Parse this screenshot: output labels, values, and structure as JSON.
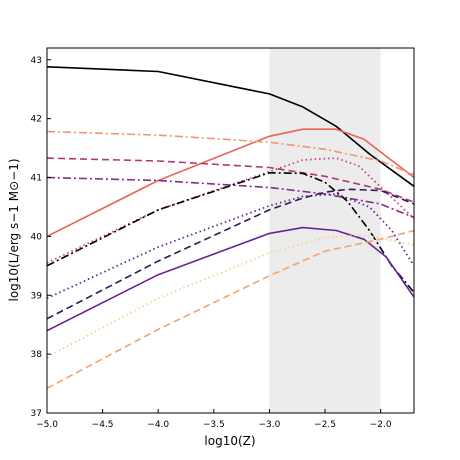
{
  "chart_data": {
    "type": "line",
    "title": "",
    "xlabel": "log10(Z)",
    "ylabel": "log10(L/erg s−1 M⊙−1)",
    "xlim": [
      -5.0,
      -1.7
    ],
    "ylim": [
      37,
      43.2
    ],
    "x_ticks": [
      -5.0,
      -4.5,
      -4.0,
      -3.5,
      -3.0,
      -2.5,
      -2.0
    ],
    "x_tick_labels": [
      "−5.0",
      "−4.5",
      "−4.0",
      "−3.5",
      "−3.0",
      "−2.5",
      "−2.0"
    ],
    "y_ticks": [
      37,
      38,
      39,
      40,
      41,
      42,
      43
    ],
    "y_tick_labels": [
      "37",
      "38",
      "39",
      "40",
      "41",
      "42",
      "43"
    ],
    "shaded_region": {
      "x": [
        -3.0,
        -2.0
      ],
      "color": "#ececec"
    },
    "grid": false,
    "legend": "none",
    "series": [
      {
        "style": "solid",
        "color": "#000000",
        "x": [
          -5.0,
          -4.0,
          -3.0,
          -2.7,
          -2.4,
          -2.1,
          -1.7
        ],
        "y": [
          42.88,
          42.8,
          42.42,
          42.2,
          41.87,
          41.4,
          40.85
        ]
      },
      {
        "style": "solid",
        "color": "#e8645a",
        "x": [
          -5.0,
          -4.0,
          -3.0,
          -2.7,
          -2.4,
          -2.15,
          -1.7
        ],
        "y": [
          40.0,
          40.95,
          41.7,
          41.82,
          41.82,
          41.65,
          41.0
        ]
      },
      {
        "style": "dashdot",
        "color": "#f4956a",
        "x": [
          -5.0,
          -4.0,
          -3.0,
          -2.5,
          -2.0,
          -1.7
        ],
        "y": [
          41.78,
          41.72,
          41.6,
          41.48,
          41.28,
          41.05
        ]
      },
      {
        "style": "dashed",
        "color": "#b5367a",
        "x": [
          -5.0,
          -4.0,
          -3.0,
          -2.5,
          -2.0,
          -1.7
        ],
        "y": [
          41.33,
          41.28,
          41.17,
          41.02,
          40.8,
          40.58
        ]
      },
      {
        "style": "dotted",
        "color": "#c2427a",
        "x": [
          -5.0,
          -4.0,
          -3.0,
          -2.7,
          -2.4,
          -2.2,
          -1.95,
          -1.7
        ],
        "y": [
          39.55,
          40.45,
          41.1,
          41.3,
          41.33,
          41.2,
          40.75,
          40.3
        ]
      },
      {
        "style": "dashdot",
        "color": "#842e83",
        "x": [
          -5.0,
          -4.0,
          -3.0,
          -2.5,
          -2.0,
          -1.7
        ],
        "y": [
          41.0,
          40.95,
          40.83,
          40.72,
          40.55,
          40.32
        ]
      },
      {
        "style": "dashdot",
        "color": "#000000",
        "x": [
          -5.0,
          -4.0,
          -3.0,
          -2.7,
          -2.5,
          -2.3,
          -2.1,
          -1.9,
          -1.7
        ],
        "y": [
          39.5,
          40.45,
          41.08,
          41.07,
          40.92,
          40.6,
          40.1,
          39.5,
          39.05
        ]
      },
      {
        "style": "dotted",
        "color": "#6a2396",
        "x": [
          -5.0,
          -4.0,
          -3.0,
          -2.7,
          -2.4,
          -2.1,
          -1.9,
          -1.7
        ],
        "y": [
          38.95,
          39.82,
          40.52,
          40.68,
          40.72,
          40.5,
          40.1,
          39.5
        ]
      },
      {
        "style": "dashed",
        "color": "#2c1b53",
        "x": [
          -5.0,
          -4.0,
          -3.0,
          -2.7,
          -2.5,
          -2.3,
          -2.0,
          -1.7
        ],
        "y": [
          38.6,
          39.58,
          40.45,
          40.65,
          40.75,
          40.8,
          40.78,
          40.55
        ]
      },
      {
        "style": "solid",
        "color": "#6a2396",
        "x": [
          -5.0,
          -4.0,
          -3.0,
          -2.7,
          -2.4,
          -2.15,
          -1.95,
          -1.7
        ],
        "y": [
          38.4,
          39.35,
          40.05,
          40.15,
          40.1,
          39.95,
          39.65,
          38.97
        ]
      },
      {
        "style": "dotted",
        "color": "#fbd08a",
        "x": [
          -5.0,
          -4.0,
          -3.0,
          -2.5,
          -2.2,
          -2.0,
          -1.7
        ],
        "y": [
          37.95,
          38.95,
          39.72,
          39.98,
          40.02,
          39.98,
          39.85
        ]
      },
      {
        "style": "dashed",
        "color": "#f7a26b",
        "x": [
          -5.0,
          -4.0,
          -3.0,
          -2.5,
          -2.0,
          -1.7
        ],
        "y": [
          37.42,
          38.42,
          39.33,
          39.75,
          39.95,
          40.1
        ]
      }
    ]
  }
}
